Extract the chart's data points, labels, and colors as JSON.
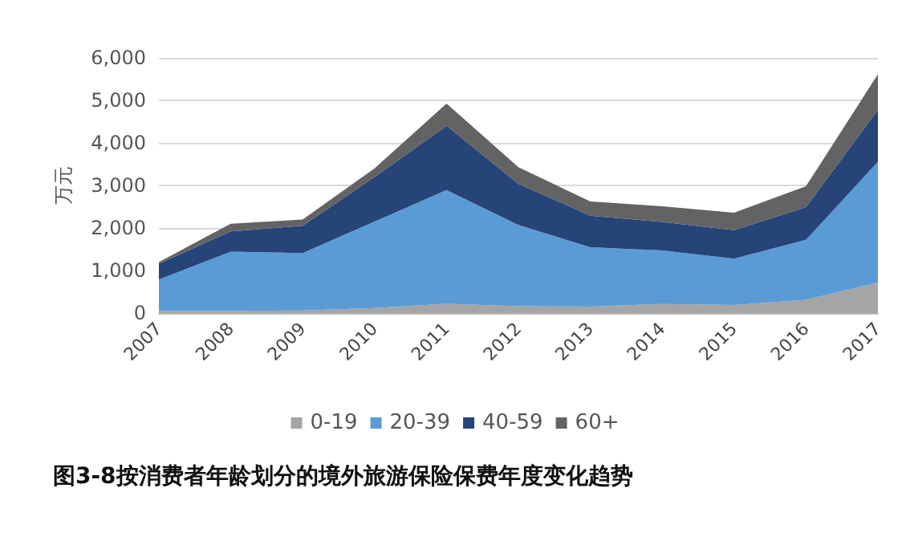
{
  "chart_data": {
    "type": "area",
    "stacked": true,
    "title": "图3-8按消费者年龄划分的境外旅游保险保费年度变化趋势",
    "ylabel": "万元",
    "categories": [
      "2007",
      "2008",
      "2009",
      "2010",
      "2011",
      "2012",
      "2013",
      "2014",
      "2015",
      "2016",
      "2017"
    ],
    "series": [
      {
        "name": "0-19",
        "color": "#a5a5a5",
        "values": [
          50,
          50,
          60,
          120,
          215,
          160,
          150,
          210,
          190,
          310,
          715
        ]
      },
      {
        "name": "20-39",
        "color": "#5b9bd5",
        "values": [
          740,
          1395,
          1350,
          2030,
          2675,
          1910,
          1395,
          1260,
          1090,
          1410,
          2840
        ]
      },
      {
        "name": "40-59",
        "color": "#264478",
        "values": [
          370,
          475,
          640,
          1050,
          1510,
          970,
          745,
          670,
          670,
          770,
          1220
        ]
      },
      {
        "name": "60+",
        "color": "#636363",
        "values": [
          40,
          180,
          150,
          200,
          525,
          390,
          335,
          370,
          410,
          490,
          840
        ]
      }
    ],
    "ylim": [
      0,
      6000
    ],
    "yticks": [
      0,
      {
        "value": 1000,
        "label": "1,000"
      },
      {
        "value": 2000,
        "label": "2,000"
      },
      {
        "value": 3000,
        "label": "3,000"
      },
      {
        "value": 4000,
        "label": "4,000"
      },
      {
        "value": 5000,
        "label": "5,000"
      },
      {
        "value": 6000,
        "label": "6,000"
      }
    ],
    "grid": "y",
    "legend": "bottom"
  }
}
